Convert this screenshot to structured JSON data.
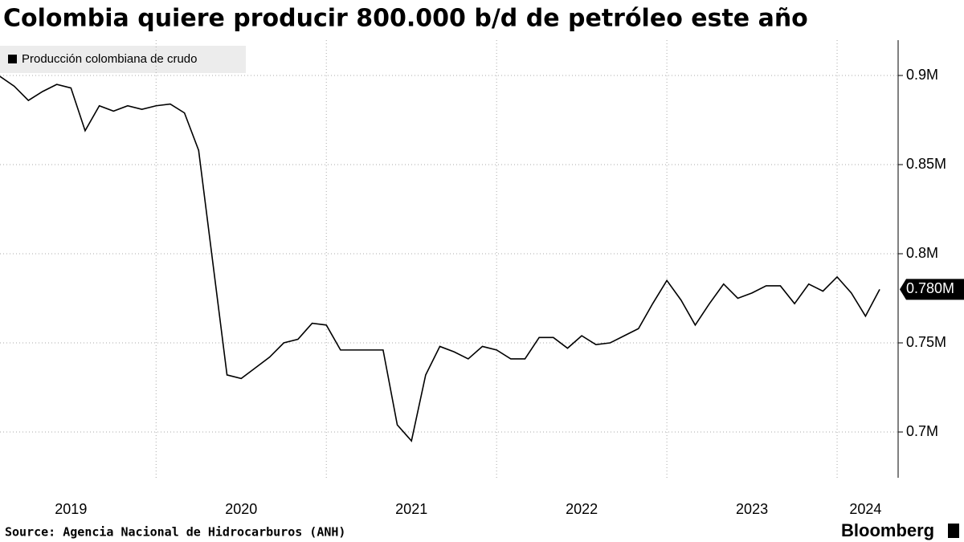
{
  "chart_data": {
    "type": "line",
    "title": "Colombia quiere producir 800.000 b/d de petróleo este año",
    "categories": [
      null,
      null,
      null,
      null,
      null,
      "2019",
      null,
      null,
      null,
      null,
      null,
      null,
      null,
      null,
      null,
      null,
      null,
      "2020",
      null,
      null,
      null,
      null,
      null,
      null,
      null,
      null,
      null,
      null,
      null,
      "2021",
      null,
      null,
      null,
      null,
      null,
      null,
      null,
      null,
      null,
      null,
      null,
      "2022",
      null,
      null,
      null,
      null,
      null,
      null,
      null,
      null,
      null,
      null,
      null,
      "2023",
      null,
      null,
      null,
      null,
      null,
      null,
      null,
      "2024",
      null
    ],
    "series": [
      {
        "name": "Producción colombiana de crudo",
        "color": "#000000",
        "values": [
          0.8995,
          0.894,
          0.886,
          0.891,
          0.895,
          0.893,
          0.869,
          0.883,
          0.88,
          0.883,
          0.881,
          0.883,
          0.884,
          0.879,
          0.858,
          0.795,
          0.732,
          0.73,
          0.736,
          0.742,
          0.75,
          0.752,
          0.761,
          0.76,
          0.746,
          0.746,
          0.746,
          0.746,
          0.704,
          0.695,
          0.732,
          0.748,
          0.745,
          0.741,
          0.748,
          0.746,
          0.741,
          0.741,
          0.753,
          0.753,
          0.747,
          0.754,
          0.749,
          0.75,
          0.754,
          0.758,
          0.772,
          0.785,
          0.774,
          0.76,
          0.772,
          0.783,
          0.775,
          0.778,
          0.782,
          0.782,
          0.772,
          0.783,
          0.779,
          0.787,
          0.778,
          0.765,
          0.78
        ]
      }
    ],
    "ylim": [
      0.675,
      0.92
    ],
    "yticks": [
      {
        "value": 0.7,
        "label": "0.7M"
      },
      {
        "value": 0.75,
        "label": "0.75M"
      },
      {
        "value": 0.8,
        "label": "0.8M"
      },
      {
        "value": 0.85,
        "label": "0.85M"
      },
      {
        "value": 0.9,
        "label": "0.9M"
      }
    ],
    "last_value_label": {
      "value": 0.78,
      "label": "0.780M"
    },
    "grid": true,
    "source": "Source: Agencia Nacional de Hidrocarburos (ANH)",
    "brand": "Bloomberg"
  }
}
